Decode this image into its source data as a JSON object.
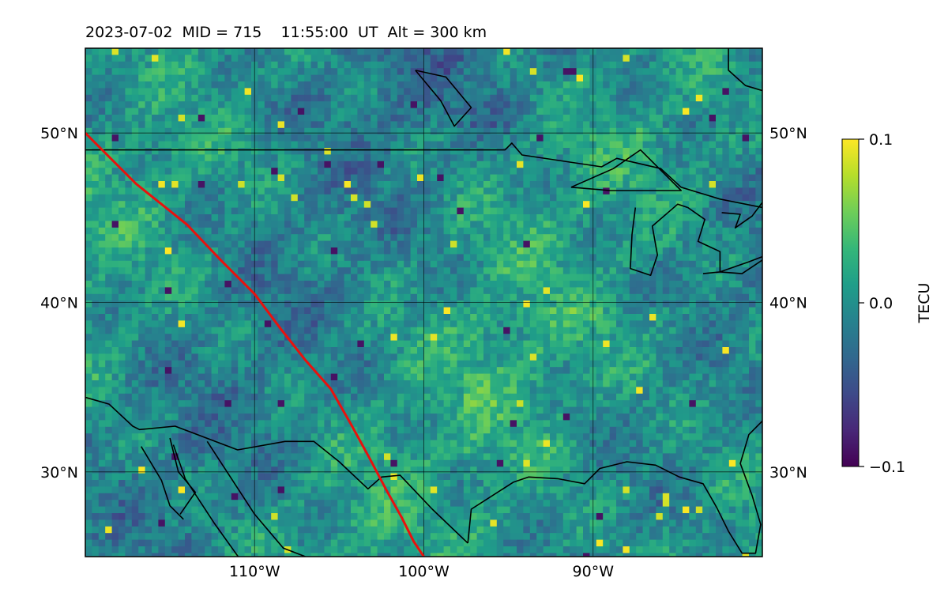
{
  "title": "2023-07-02  MID = 715    11:55:00  UT  Alt = 300 km",
  "map": {
    "extent": {
      "lon_min": -120,
      "lon_max": -80,
      "lat_min": 25,
      "lat_max": 55
    },
    "lat_ticks": [
      {
        "value": 50,
        "label": "50°N"
      },
      {
        "value": 40,
        "label": "40°N"
      },
      {
        "value": 30,
        "label": "30°N"
      }
    ],
    "lon_ticks": [
      {
        "value": -110,
        "label": "110°W"
      },
      {
        "value": -100,
        "label": "100°W"
      },
      {
        "value": -90,
        "label": "90°W"
      }
    ],
    "grid": true,
    "red_track": [
      [
        -120,
        50
      ],
      [
        -117,
        47
      ],
      [
        -114,
        44.6
      ],
      [
        -112,
        42.5
      ],
      [
        -110,
        40.5
      ],
      [
        -108.5,
        38.5
      ],
      [
        -107,
        36.6
      ],
      [
        -105.5,
        34.9
      ],
      [
        -104.3,
        32.8
      ],
      [
        -103.2,
        30.8
      ],
      [
        -102.2,
        28.9
      ],
      [
        -101.3,
        27.3
      ],
      [
        -100.6,
        25.9
      ],
      [
        -100,
        25
      ]
    ],
    "coastlines": [
      [
        [
          -120,
          49
        ],
        [
          -95.2,
          49
        ],
        [
          -94.8,
          49.4
        ],
        [
          -94.2,
          48.7
        ],
        [
          -89.5,
          48
        ],
        [
          -88.6,
          48.5
        ],
        [
          -86,
          47.9
        ],
        [
          -84.8,
          46.8
        ],
        [
          -82.5,
          46.1
        ],
        [
          -80,
          45.6
        ]
      ],
      [
        [
          -91.3,
          46.8
        ],
        [
          -88.8,
          47.9
        ],
        [
          -87.2,
          49
        ],
        [
          -84.8,
          46.6
        ],
        [
          -89,
          46.6
        ],
        [
          -91.3,
          46.8
        ]
      ],
      [
        [
          -87.5,
          45.6
        ],
        [
          -87.7,
          44
        ],
        [
          -87.8,
          42
        ],
        [
          -86.6,
          41.6
        ],
        [
          -86.2,
          42.8
        ],
        [
          -86.5,
          44.5
        ],
        [
          -85,
          45.8
        ],
        [
          -84.4,
          45.6
        ]
      ],
      [
        [
          -84.4,
          45.6
        ],
        [
          -83.4,
          44.9
        ],
        [
          -83.8,
          43.6
        ],
        [
          -82.5,
          43
        ],
        [
          -82.5,
          41.8
        ],
        [
          -81.2,
          41.7
        ],
        [
          -80,
          42.5
        ]
      ],
      [
        [
          -83.5,
          41.7
        ],
        [
          -82.5,
          41.8
        ],
        [
          -80.8,
          42.4
        ],
        [
          -80,
          42.7
        ]
      ],
      [
        [
          -82.4,
          45.3
        ],
        [
          -81.3,
          45.2
        ],
        [
          -81.6,
          44.4
        ],
        [
          -80.6,
          45.1
        ],
        [
          -80,
          45.9
        ]
      ],
      [
        [
          -82,
          55
        ],
        [
          -82,
          53.7
        ],
        [
          -81,
          52.8
        ],
        [
          -80,
          52.5
        ]
      ],
      [
        [
          -100.5,
          53.7
        ],
        [
          -99,
          51.9
        ],
        [
          -98.2,
          50.4
        ],
        [
          -97.2,
          51.5
        ],
        [
          -98.7,
          53.3
        ],
        [
          -100.5,
          53.7
        ]
      ],
      [
        [
          -120,
          34.4
        ],
        [
          -118.6,
          34
        ],
        [
          -117.2,
          32.7
        ],
        [
          -116.8,
          32.5
        ],
        [
          -114.7,
          32.7
        ],
        [
          -111,
          31.3
        ],
        [
          -108.2,
          31.8
        ],
        [
          -106.5,
          31.8
        ],
        [
          -105,
          30.6
        ],
        [
          -103.3,
          29
        ],
        [
          -102.5,
          29.7
        ],
        [
          -101.4,
          29.8
        ],
        [
          -99.5,
          27.8
        ],
        [
          -97.4,
          25.8
        ]
      ],
      [
        [
          -97.4,
          25.8
        ],
        [
          -97.2,
          27.8
        ],
        [
          -94.7,
          29.4
        ],
        [
          -93.8,
          29.7
        ],
        [
          -92.1,
          29.6
        ],
        [
          -90.5,
          29.3
        ],
        [
          -89.6,
          30.2
        ],
        [
          -89.2,
          30.3
        ],
        [
          -88,
          30.6
        ],
        [
          -86.3,
          30.4
        ],
        [
          -84.9,
          29.7
        ],
        [
          -83.5,
          29.3
        ],
        [
          -82.7,
          27.9
        ],
        [
          -82,
          26.5
        ],
        [
          -81.2,
          25.2
        ],
        [
          -80.4,
          25.2
        ],
        [
          -80.1,
          26.9
        ],
        [
          -80.6,
          28.6
        ],
        [
          -81.3,
          30.5
        ],
        [
          -80.8,
          32.2
        ],
        [
          -80,
          33
        ]
      ],
      [
        [
          -112.8,
          31.8
        ],
        [
          -110,
          27.5
        ],
        [
          -108.3,
          25.5
        ],
        [
          -107,
          25
        ]
      ],
      [
        [
          -114.8,
          31.6
        ],
        [
          -114.1,
          29.6
        ],
        [
          -112.4,
          27
        ],
        [
          -110.4,
          24.2
        ]
      ],
      [
        [
          -115,
          32
        ],
        [
          -114.5,
          30
        ],
        [
          -113.5,
          28.8
        ],
        [
          -114.4,
          27.5
        ]
      ],
      [
        [
          -116.7,
          31.5
        ],
        [
          -115.5,
          29.5
        ],
        [
          -115,
          28
        ],
        [
          -114.2,
          27.2
        ]
      ]
    ]
  },
  "colorbar": {
    "label": "TECU",
    "min": -0.1,
    "max": 0.1,
    "ticks": [
      {
        "value": 0.1,
        "label": "0.1"
      },
      {
        "value": 0.0,
        "label": "0.0"
      },
      {
        "value": -0.1,
        "label": "−0.1"
      }
    ],
    "colormap": [
      "#440154",
      "#482878",
      "#3e4a89",
      "#31688e",
      "#26828e",
      "#1f9e89",
      "#35b779",
      "#6ece58",
      "#b5de2b",
      "#fde725"
    ]
  },
  "colors": {
    "track": "#e8120e",
    "coast": "#000000",
    "grid": "#000000"
  }
}
